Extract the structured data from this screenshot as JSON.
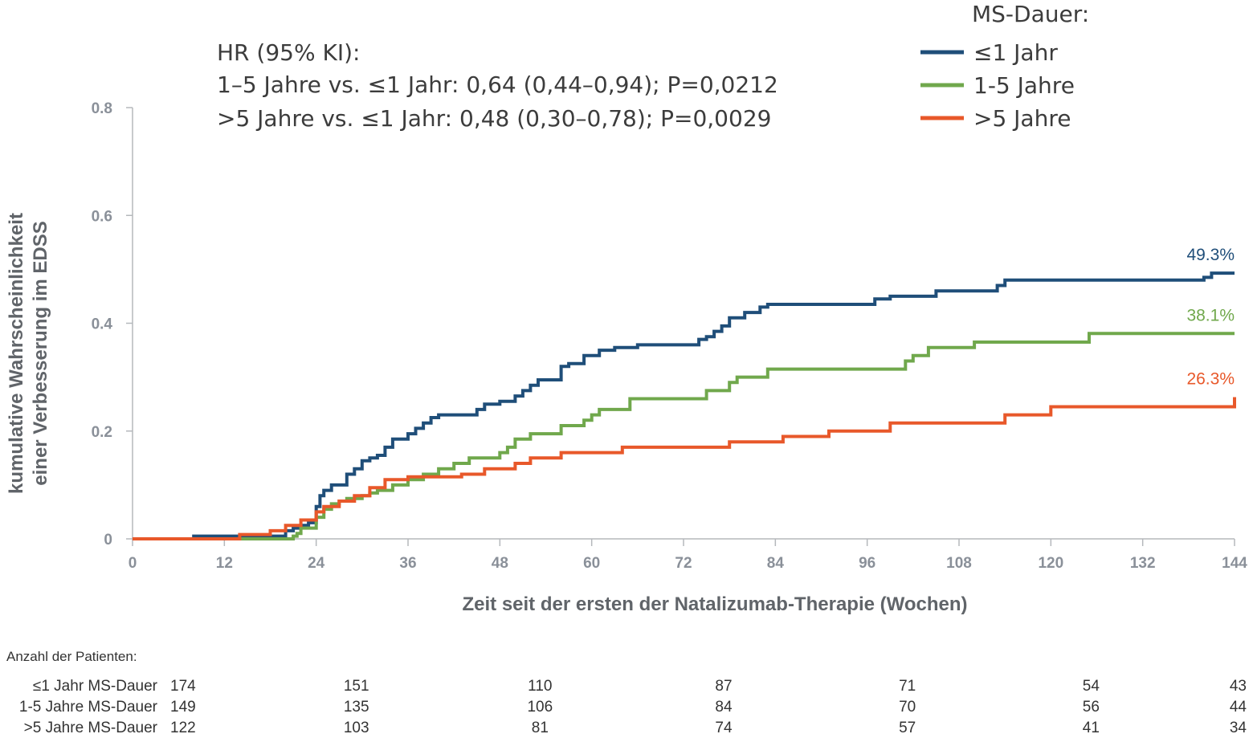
{
  "chart_data": {
    "type": "line",
    "step": true,
    "xlabel": "Zeit seit der ersten der Natalizumab-Therapie (Wochen)",
    "ylabel_lines": [
      "kumulative Wahrscheinlichkeit",
      "einer Verbesserung im EDSS"
    ],
    "xlim": [
      0,
      144
    ],
    "ylim": [
      0,
      0.8
    ],
    "x_ticks": [
      "0",
      "12",
      "24",
      "36",
      "48",
      "60",
      "72",
      "84",
      "96",
      "108",
      "120",
      "132",
      "144"
    ],
    "y_ticks": [
      {
        "value": 0,
        "label": "0"
      },
      {
        "value": 0.2,
        "label": "0.2"
      },
      {
        "value": 0.4,
        "label": "0.4"
      },
      {
        "value": 0.6,
        "label": "0.6"
      },
      {
        "value": 0.8,
        "label": "0.8"
      }
    ],
    "grid": false,
    "annotation_lines": [
      "HR (95% KI):",
      "1–5 Jahre vs. ≤1 Jahr: 0,64 (0,44–0,94); P=0,0212",
      ">5 Jahre vs. ≤1 Jahr: 0,48 (0,30–0,78); P=0,0029"
    ],
    "legend_title": "MS-Dauer:",
    "legend_position": "top-right",
    "series": [
      {
        "name": "≤1 Jahr",
        "color": "#1f4e79",
        "end_label": "49.3%",
        "x": [
          0,
          8,
          20,
          21,
          22,
          23,
          24,
          24.5,
          25,
          26,
          28,
          29,
          30,
          31,
          32,
          33,
          34,
          36,
          37,
          38,
          39,
          40,
          45,
          46,
          48,
          50,
          51,
          52,
          53,
          56,
          57,
          59,
          61,
          63,
          66,
          74,
          75,
          76,
          77,
          78,
          80,
          82,
          83,
          97,
          99,
          105,
          113,
          114,
          140,
          141,
          144
        ],
        "y": [
          0,
          0.005,
          0.015,
          0.02,
          0.025,
          0.03,
          0.06,
          0.08,
          0.09,
          0.1,
          0.12,
          0.13,
          0.145,
          0.15,
          0.155,
          0.17,
          0.185,
          0.195,
          0.205,
          0.215,
          0.225,
          0.23,
          0.24,
          0.25,
          0.255,
          0.265,
          0.275,
          0.285,
          0.295,
          0.32,
          0.325,
          0.34,
          0.35,
          0.355,
          0.36,
          0.37,
          0.375,
          0.385,
          0.395,
          0.41,
          0.42,
          0.43,
          0.435,
          0.445,
          0.45,
          0.46,
          0.47,
          0.48,
          0.485,
          0.493,
          0.493
        ]
      },
      {
        "name": "1-5 Jahre",
        "color": "#70a84c",
        "end_label": "38.1%",
        "x": [
          0,
          21,
          21.5,
          22,
          24,
          25,
          26,
          27,
          28,
          30,
          31,
          32,
          34,
          36,
          38,
          40,
          42,
          44,
          48,
          49,
          50,
          52,
          56,
          59,
          60,
          61,
          65,
          75,
          78,
          79,
          83,
          101,
          102,
          104,
          110,
          125,
          144
        ],
        "y": [
          0,
          0.005,
          0.01,
          0.02,
          0.04,
          0.055,
          0.065,
          0.07,
          0.075,
          0.08,
          0.085,
          0.09,
          0.1,
          0.11,
          0.12,
          0.13,
          0.14,
          0.15,
          0.16,
          0.17,
          0.185,
          0.195,
          0.21,
          0.22,
          0.23,
          0.24,
          0.26,
          0.275,
          0.29,
          0.3,
          0.315,
          0.33,
          0.34,
          0.355,
          0.365,
          0.381,
          0.381
        ]
      },
      {
        "name": ">5 Jahre",
        "color": "#e8582a",
        "end_label": "26.3%",
        "x": [
          0,
          14,
          18,
          20,
          22,
          24,
          25,
          27,
          29,
          31,
          33,
          36,
          43,
          46,
          50,
          52,
          56,
          64,
          78,
          85,
          91,
          99,
          114,
          120,
          144
        ],
        "y": [
          0,
          0.008,
          0.015,
          0.025,
          0.035,
          0.05,
          0.06,
          0.07,
          0.08,
          0.095,
          0.11,
          0.115,
          0.12,
          0.13,
          0.14,
          0.15,
          0.16,
          0.17,
          0.18,
          0.19,
          0.2,
          0.215,
          0.23,
          0.245,
          0.263
        ]
      }
    ]
  },
  "risk_table": {
    "title": "Anzahl der Patienten:",
    "weeks": [
      0,
      24,
      48,
      72,
      96,
      120,
      144
    ],
    "rows": [
      {
        "label": "≤1 Jahr MS-Dauer",
        "values": [
          "174",
          "151",
          "110",
          "87",
          "71",
          "54",
          "43"
        ]
      },
      {
        "label": "1-5 Jahre MS-Dauer",
        "values": [
          "149",
          "135",
          "106",
          "84",
          "70",
          "56",
          "44"
        ]
      },
      {
        "label": ">5 Jahre MS-Dauer",
        "values": [
          "122",
          "103",
          "81",
          "74",
          "57",
          "41",
          "34"
        ]
      }
    ]
  }
}
